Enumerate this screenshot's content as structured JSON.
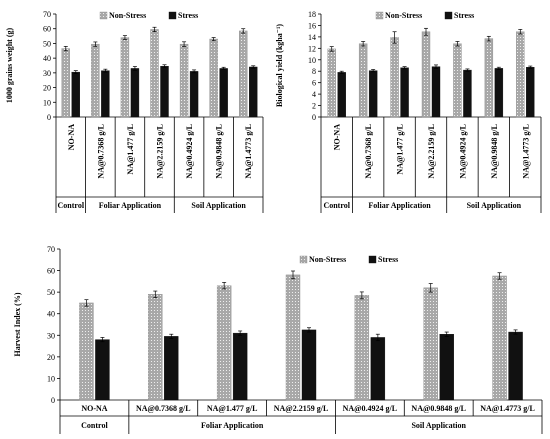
{
  "chart_data": [
    {
      "type": "bar",
      "ylabel": "1000 grains weight (g)",
      "ylim": [
        0,
        70
      ],
      "yticks": [
        0,
        10,
        20,
        30,
        40,
        50,
        60,
        70
      ],
      "categories": [
        "NO-NA",
        "NA@0.7368 g/L",
        "NA@1.477 g/L",
        "NA@2.2159 g/L",
        "NA@0.4924 g/L",
        "NA@0.9848 g/L",
        "NA@1.4773 g/L"
      ],
      "groups": [
        {
          "label": "Control",
          "count": 1
        },
        {
          "label": "Foliar Application",
          "count": 3
        },
        {
          "label": "Soil Application",
          "count": 3
        }
      ],
      "legend_position": "top-right",
      "series": [
        {
          "name": "Non-Stress",
          "color": "#a8a8a8",
          "pattern": "dotted",
          "values": [
            46.5,
            49.5,
            54,
            59.5,
            49.5,
            53,
            58.5
          ],
          "errors": [
            1.5,
            1.5,
            1.3,
            1.5,
            1.6,
            1.0,
            1.5
          ]
        },
        {
          "name": "Stress",
          "color": "#111111",
          "pattern": "solid",
          "values": [
            30.5,
            31.5,
            33,
            34.5,
            31,
            33,
            34
          ],
          "errors": [
            1.0,
            1.0,
            1.3,
            1.0,
            1.0,
            0.8,
            0.8
          ]
        }
      ]
    },
    {
      "type": "bar",
      "ylabel": "Biological yield (kgha⁻¹)",
      "ylim": [
        0,
        18
      ],
      "yticks": [
        0,
        2,
        4,
        6,
        8,
        10,
        12,
        14,
        16,
        18
      ],
      "categories": [
        "NO-NA",
        "NA@0.7368 g/L",
        "NA@1.477 g/L",
        "NA@2.2159 g/L",
        "NA@0.4924 g/L",
        "NA@0.9848 g/L",
        "NA@1.4773 g/L"
      ],
      "groups": [
        {
          "label": "Control",
          "count": 1
        },
        {
          "label": "Foliar Application",
          "count": 3
        },
        {
          "label": "Soil Application",
          "count": 3
        }
      ],
      "legend_position": "top-right",
      "series": [
        {
          "name": "Non-Stress",
          "color": "#a8a8a8",
          "pattern": "dotted",
          "values": [
            11.9,
            12.8,
            13.9,
            14.9,
            12.8,
            13.7,
            14.9
          ],
          "errors": [
            0.4,
            0.4,
            1.0,
            0.6,
            0.4,
            0.4,
            0.4
          ]
        },
        {
          "name": "Stress",
          "color": "#111111",
          "pattern": "solid",
          "values": [
            7.8,
            8.1,
            8.6,
            8.8,
            8.2,
            8.5,
            8.7
          ],
          "errors": [
            0.2,
            0.2,
            0.2,
            0.3,
            0.2,
            0.2,
            0.2
          ]
        }
      ]
    },
    {
      "type": "bar",
      "ylabel": "Harvest Index (%)",
      "ylim": [
        0,
        70
      ],
      "yticks": [
        0,
        10,
        20,
        30,
        40,
        50,
        60,
        70
      ],
      "categories": [
        "NO-NA",
        "NA@0.7368 g/L",
        "NA@1.477 g/L",
        "NA@2.2159 g/L",
        "NA@0.4924 g/L",
        "NA@0.9848 g/L",
        "NA@1.4773 g/L"
      ],
      "groups": [
        {
          "label": "Control",
          "count": 1
        },
        {
          "label": "Foliar Application",
          "count": 3
        },
        {
          "label": "Soil Application",
          "count": 3
        }
      ],
      "legend_position": "top-right",
      "series": [
        {
          "name": "Non-Stress",
          "color": "#a8a8a8",
          "pattern": "dotted",
          "values": [
            45,
            49,
            53,
            58,
            48.5,
            52,
            57.5
          ],
          "errors": [
            1.5,
            1.5,
            1.5,
            1.8,
            1.6,
            2.0,
            1.5
          ]
        },
        {
          "name": "Stress",
          "color": "#111111",
          "pattern": "solid",
          "values": [
            28,
            29.5,
            31,
            32.5,
            29,
            30.5,
            31.5
          ],
          "errors": [
            1.0,
            1.0,
            1.0,
            1.0,
            1.5,
            1.0,
            1.0
          ]
        }
      ]
    }
  ]
}
